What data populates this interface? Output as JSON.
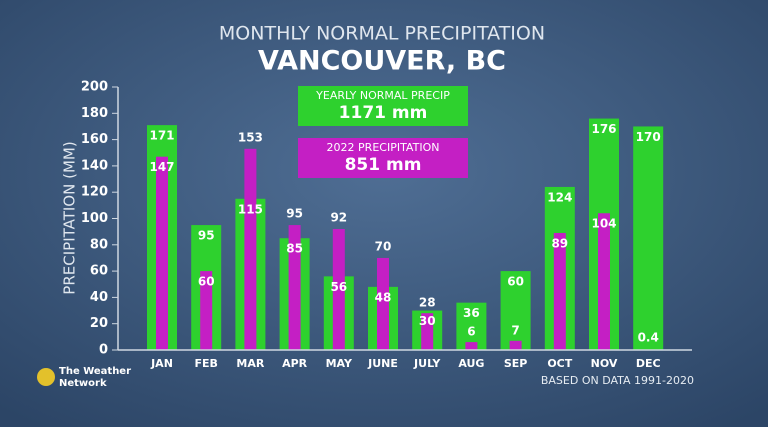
{
  "chart_data": {
    "type": "bar",
    "title": "MONTHLY NORMAL PRECIPITATION",
    "subtitle": "VANCOUVER, BC",
    "y_label": "PRECIPITATION (MM)",
    "note": "BASED ON DATA 1991-2020",
    "categories": [
      "JAN",
      "FEB",
      "MAR",
      "APR",
      "MAY",
      "JUNE",
      "JULY",
      "AUG",
      "SEP",
      "OCT",
      "NOV",
      "DEC"
    ],
    "series": [
      {
        "name": "YEARLY NORMAL PRECIP",
        "total": "1171 mm",
        "color": "#2ed12e",
        "values": [
          171,
          95,
          115,
          85,
          56,
          48,
          30,
          36,
          60,
          124,
          176,
          170
        ]
      },
      {
        "name": "2022 PRECIPITATION",
        "total": "851 mm",
        "color": "#c41fc4",
        "values": [
          147,
          60,
          153,
          95,
          92,
          70,
          28,
          6,
          7,
          89,
          104,
          0.4
        ]
      }
    ],
    "ylim": [
      0,
      200
    ],
    "yticks": [
      0,
      20,
      40,
      60,
      80,
      100,
      120,
      140,
      160,
      180,
      200
    ]
  },
  "branding": {
    "lines": [
      "The Weather",
      "Network"
    ]
  }
}
